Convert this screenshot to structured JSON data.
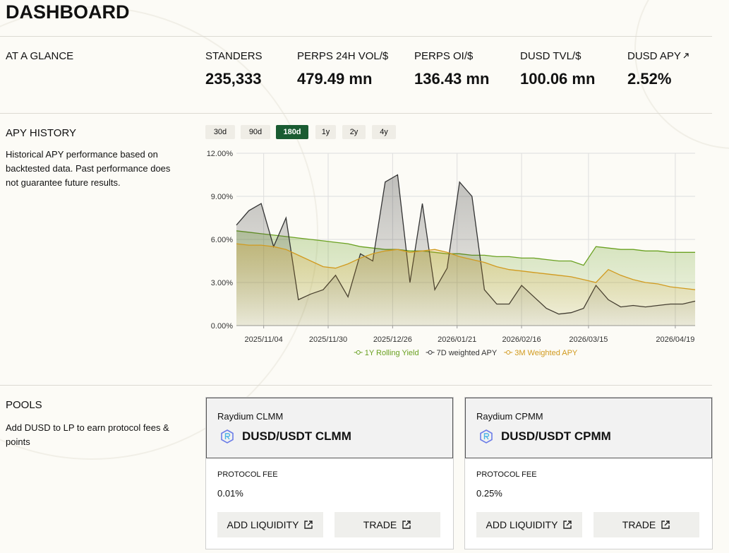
{
  "header": {
    "title": "DASHBOARD"
  },
  "at_a_glance": {
    "title": "AT A GLANCE",
    "stats": [
      {
        "label": "STANDERS",
        "value": "235,333"
      },
      {
        "label": "PERPS 24H VOL/$",
        "value": "479.49 mn"
      },
      {
        "label": "PERPS OI/$",
        "value": "136.43 mn"
      },
      {
        "label": "DUSD TVL/$",
        "value": "100.06 mn"
      },
      {
        "label": "DUSD APY",
        "value": "2.52%"
      }
    ]
  },
  "apy_history": {
    "title": "APY HISTORY",
    "description": "Historical APY performance based on backtested data. Past performance does not guarantee future results.",
    "ranges": [
      "30d",
      "90d",
      "180d",
      "1y",
      "2y",
      "4y"
    ],
    "active_range": "180d"
  },
  "chart_data": {
    "type": "line",
    "x": [
      "2025/10/24",
      "2025/10/29",
      "2025/11/03",
      "2025/11/08",
      "2025/11/13",
      "2025/11/18",
      "2025/11/23",
      "2025/11/28",
      "2025/12/03",
      "2025/12/08",
      "2025/12/13",
      "2025/12/18",
      "2025/12/23",
      "2025/12/28",
      "2026/01/02",
      "2026/01/07",
      "2026/01/12",
      "2026/01/17",
      "2026/01/22",
      "2026/01/27",
      "2026/02/01",
      "2026/02/06",
      "2026/02/11",
      "2026/02/16",
      "2026/02/21",
      "2026/02/26",
      "2026/03/03",
      "2026/03/08",
      "2026/03/13",
      "2026/03/18",
      "2026/03/23",
      "2026/03/28",
      "2026/04/02",
      "2026/04/07",
      "2026/04/12",
      "2026/04/17",
      "2026/04/22",
      "2026/04/27"
    ],
    "xlim": [
      "2025/10/24",
      "2026/04/27"
    ],
    "xticks": [
      "2025/11/04",
      "2025/11/30",
      "2025/12/26",
      "2026/01/21",
      "2026/02/16",
      "2026/03/15",
      "2026/04/19"
    ],
    "ylim": [
      0,
      12
    ],
    "yticks": [
      {
        "value": 0,
        "label": "0.00%"
      },
      {
        "value": 3,
        "label": "3.00%"
      },
      {
        "value": 6,
        "label": "6.00%"
      },
      {
        "value": 9,
        "label": "9.00%"
      },
      {
        "value": 12,
        "label": "12.00%"
      }
    ],
    "grid": true,
    "legend": "bottom",
    "series": [
      {
        "name": "1Y Rolling Yield",
        "color": "#6aa121",
        "values": [
          6.6,
          6.5,
          6.4,
          6.3,
          6.2,
          6.1,
          6.0,
          5.9,
          5.8,
          5.7,
          5.5,
          5.4,
          5.3,
          5.3,
          5.2,
          5.2,
          5.1,
          5.0,
          5.0,
          4.9,
          4.9,
          4.8,
          4.8,
          4.7,
          4.7,
          4.6,
          4.5,
          4.5,
          4.2,
          5.5,
          5.4,
          5.3,
          5.3,
          5.2,
          5.2,
          5.1,
          5.1,
          5.1
        ]
      },
      {
        "name": "7D weighted APY",
        "color": "#333333",
        "values": [
          7.0,
          8.0,
          8.5,
          5.5,
          7.5,
          1.8,
          2.2,
          2.5,
          3.5,
          2.0,
          5.0,
          4.5,
          10.0,
          10.5,
          3.0,
          8.5,
          2.5,
          4.0,
          10.0,
          9.0,
          2.5,
          1.5,
          1.5,
          2.8,
          2.0,
          1.2,
          0.8,
          0.9,
          1.2,
          2.8,
          1.8,
          1.3,
          1.4,
          1.3,
          1.4,
          1.5,
          1.5,
          1.7
        ]
      },
      {
        "name": "3M Weighted APY",
        "color": "#d19a1e",
        "values": [
          5.7,
          5.6,
          5.6,
          5.5,
          5.3,
          4.9,
          4.5,
          4.1,
          4.0,
          4.3,
          4.7,
          5.0,
          5.2,
          5.3,
          5.1,
          5.2,
          5.3,
          5.1,
          4.8,
          4.6,
          4.4,
          4.1,
          3.9,
          3.8,
          3.7,
          3.6,
          3.5,
          3.4,
          3.2,
          3.0,
          3.9,
          3.5,
          3.2,
          3.0,
          2.9,
          2.7,
          2.6,
          2.5
        ]
      }
    ]
  },
  "pools": {
    "title": "POOLS",
    "description": "Add DUSD to LP to earn protocol fees & points",
    "cards": [
      {
        "platform": "Raydium CLMM",
        "pair": "DUSD/USDT CLMM",
        "fee_label": "PROTOCOL FEE",
        "fee": "0.01%",
        "buttons": [
          "ADD LIQUIDITY",
          "TRADE"
        ]
      },
      {
        "platform": "Raydium CPMM",
        "pair": "DUSD/USDT CPMM",
        "fee_label": "PROTOCOL FEE",
        "fee": "0.25%",
        "buttons": [
          "ADD LIQUIDITY",
          "TRADE"
        ]
      }
    ]
  }
}
